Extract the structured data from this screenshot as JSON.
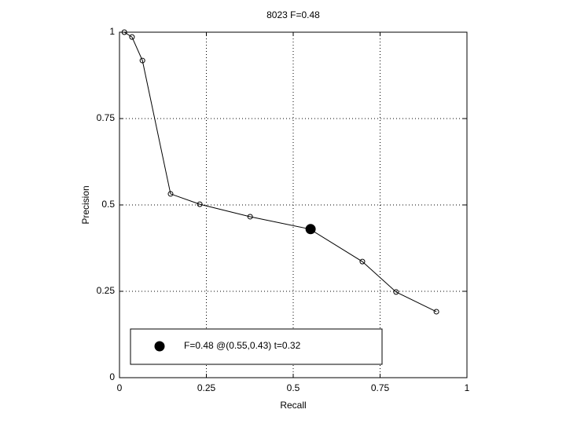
{
  "chart_data": {
    "type": "line",
    "title": "8023 F=0.48",
    "xlabel": "Recall",
    "ylabel": "Precision",
    "xlim": [
      0,
      1
    ],
    "ylim": [
      0,
      1
    ],
    "xticks": [
      0,
      0.25,
      0.5,
      0.75,
      1
    ],
    "yticks": [
      0,
      0.25,
      0.5,
      0.75,
      1
    ],
    "grid": true,
    "legend": "lower left",
    "series": [
      {
        "color": "#000000",
        "marker": "open",
        "x": [
          0.014,
          0.036,
          0.066,
          0.147,
          0.231,
          0.376,
          0.548,
          0.699,
          0.796,
          0.912
        ],
        "values": [
          1.0,
          0.986,
          0.918,
          0.532,
          0.502,
          0.466,
          0.43,
          0.336,
          0.248,
          0.191
        ]
      },
      {
        "name": "F=0.48 @(0.55,0.43) t=0.32",
        "color": "#000000",
        "marker": "filled",
        "x": [
          0.55
        ],
        "values": [
          0.43
        ]
      }
    ]
  }
}
